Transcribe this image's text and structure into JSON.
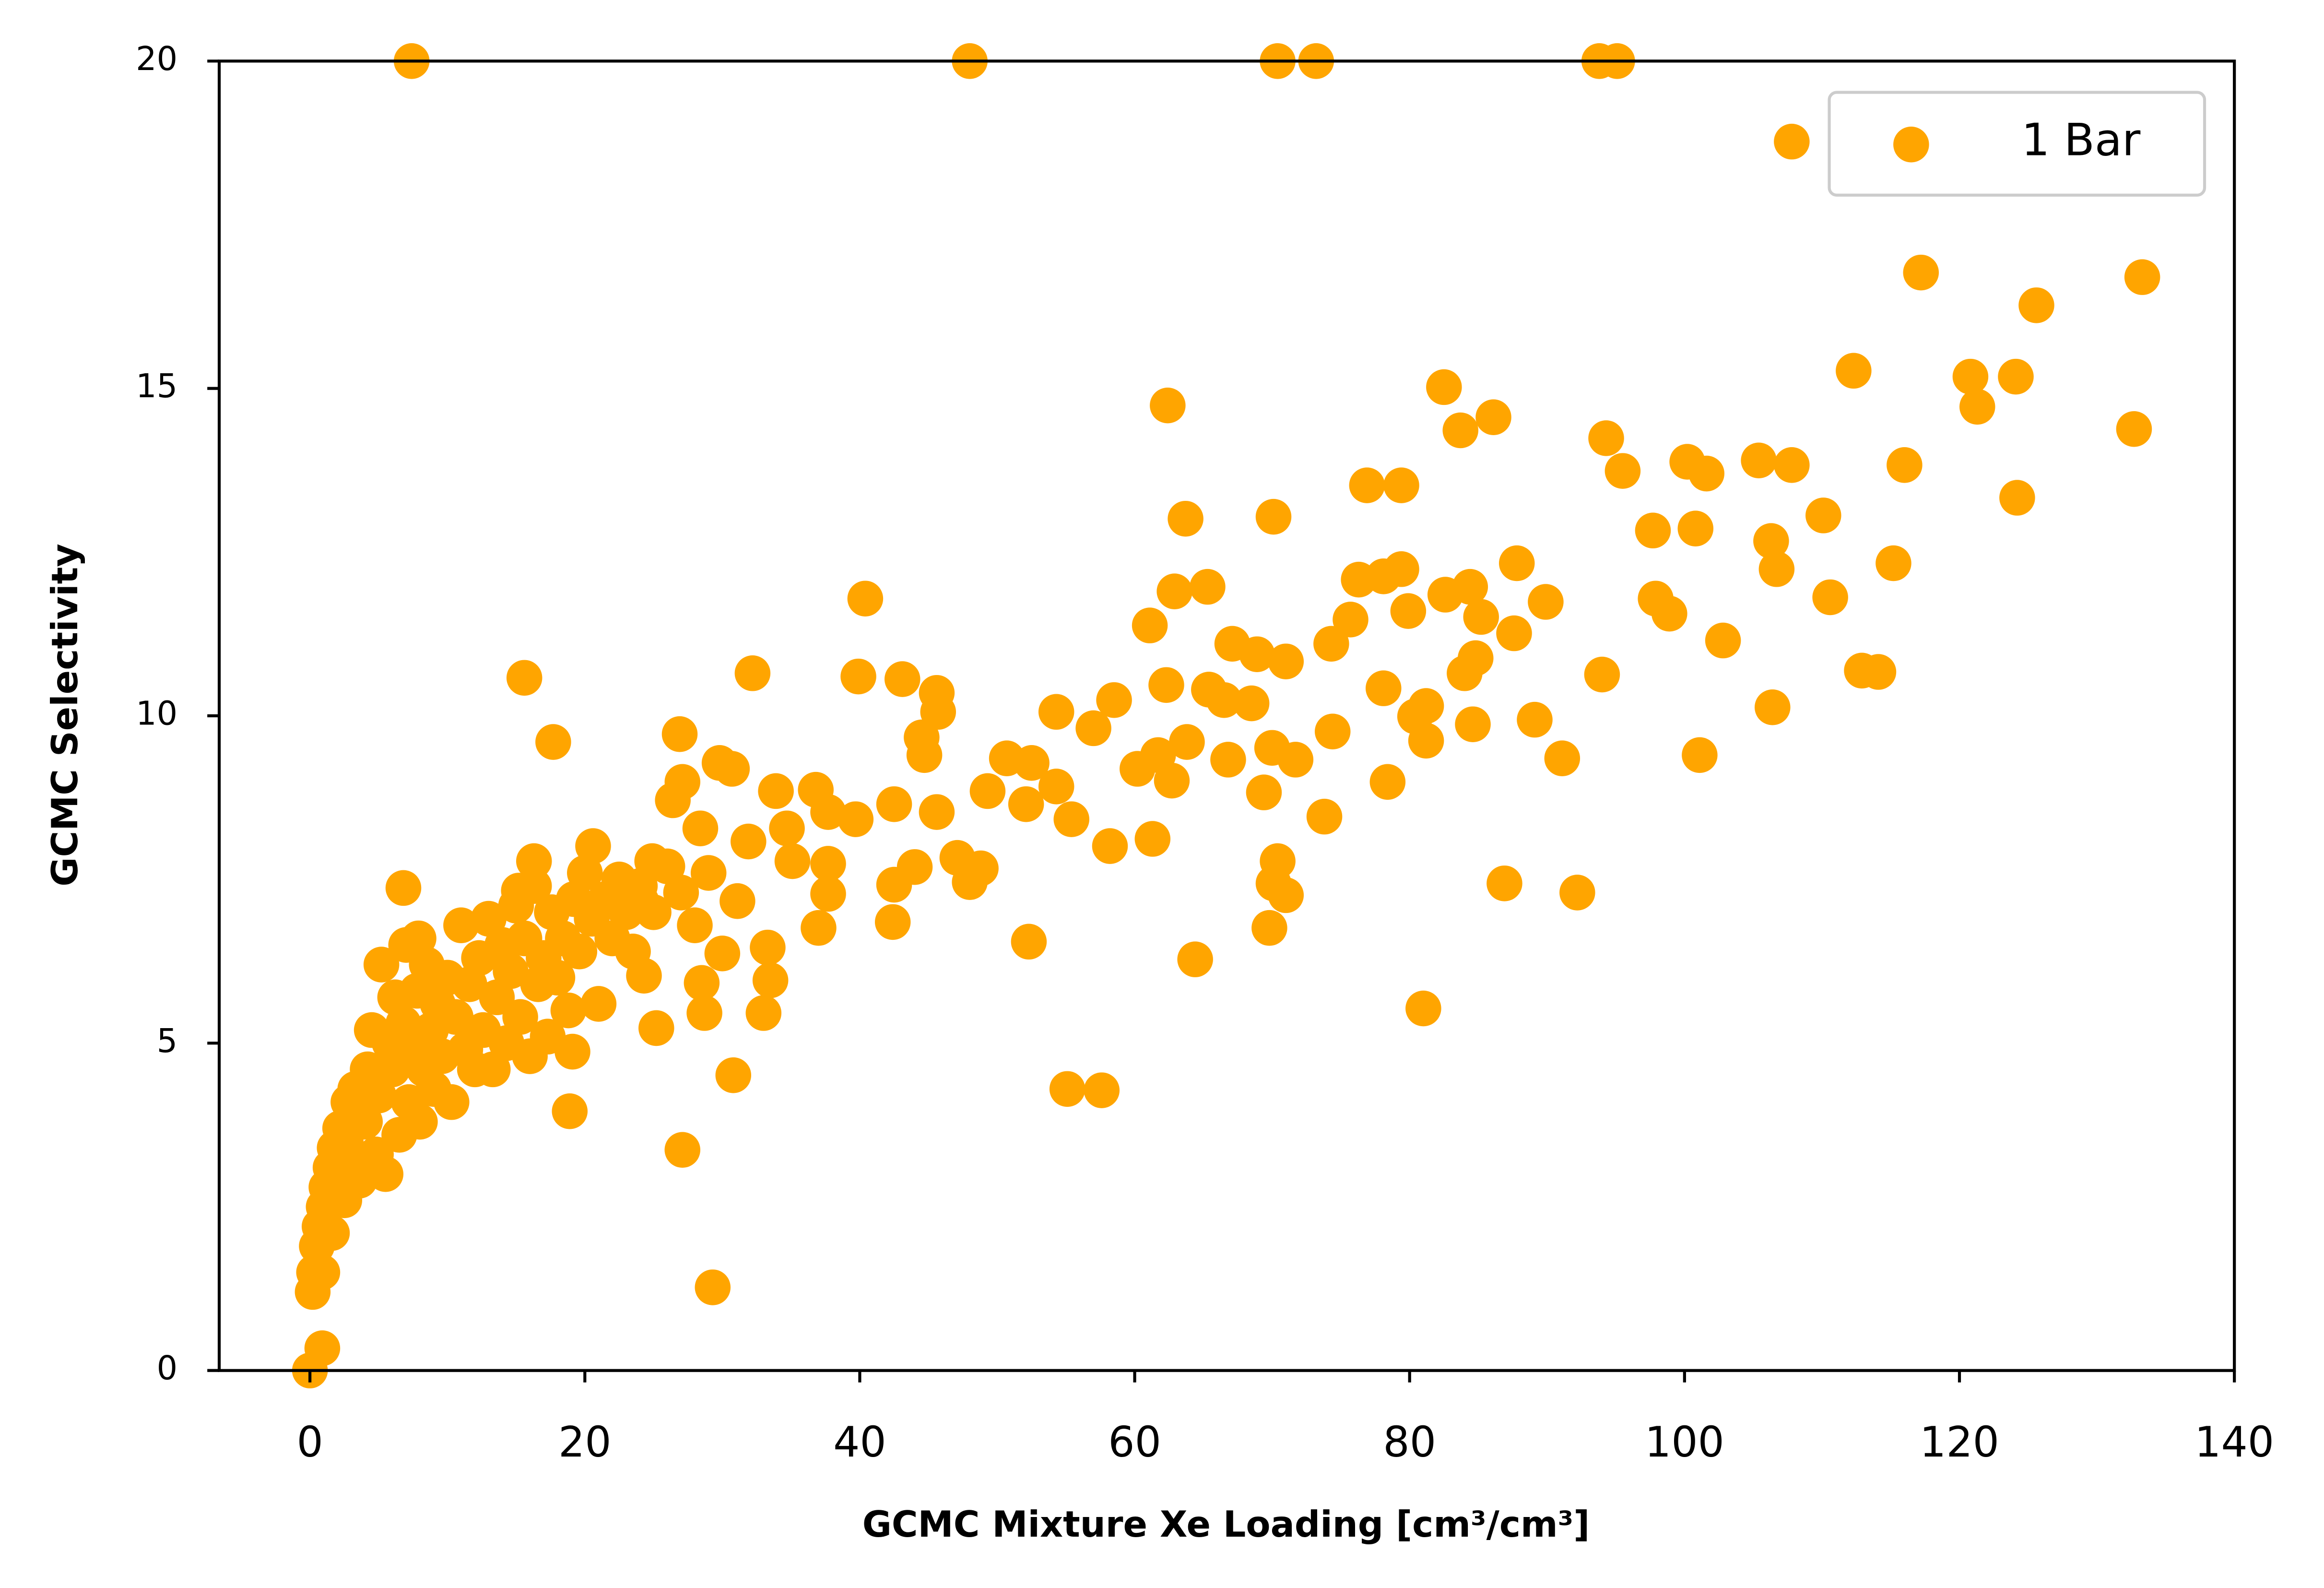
{
  "chart_data": {
    "type": "scatter",
    "xlabel": "GCMC Mixture Xe Loading [cm³/cm³]",
    "ylabel": "GCMC Selectivity",
    "xlim": [
      -6.6,
      140
    ],
    "ylim": [
      0,
      20
    ],
    "xticks": [
      0,
      20,
      40,
      60,
      80,
      100,
      120,
      140
    ],
    "yticks": [
      0,
      5,
      10,
      15,
      20
    ],
    "legend": "upper right",
    "x": [
      7.4,
      48.0,
      70.4,
      73.2,
      93.8,
      95.1,
      107.8,
      117.2,
      133.3,
      125.6,
      112.3,
      120.8,
      124.1,
      121.3,
      132.7,
      124.2,
      116.0,
      82.5,
      62.4,
      86.1,
      83.7,
      94.3,
      95.5,
      105.4,
      107.8,
      100.2,
      101.6,
      76.9,
      79.4,
      63.7,
      70.1,
      100.8,
      97.7,
      110.1,
      106.3,
      106.7,
      115.2,
      87.8,
      84.4,
      82.6,
      79.4,
      76.3,
      78.1,
      65.3,
      62.9,
      40.4,
      89.9,
      97.9,
      98.9,
      110.6,
      79.9,
      75.7,
      85.2,
      61.1,
      87.6,
      102.8,
      67.1,
      74.3,
      68.9,
      71.0,
      84.8,
      84.0,
      112.9,
      114.1,
      94.0,
      15.6,
      32.2,
      39.9,
      43.1,
      45.6,
      45.7,
      62.3,
      65.4,
      66.5,
      68.5,
      78.1,
      58.5,
      54.3,
      106.4,
      81.2,
      80.4,
      84.6,
      89.1,
      81.2,
      74.4,
      57.0,
      17.7,
      26.9,
      44.5,
      44.7,
      70.0,
      101.1,
      91.1,
      71.7,
      63.8,
      61.7,
      60.2,
      66.8,
      50.7,
      52.5,
      29.8,
      30.7,
      27.1,
      62.7,
      78.4,
      69.4,
      33.9,
      36.8,
      54.3,
      49.3,
      26.4,
      42.5,
      45.6,
      52.1,
      55.4,
      73.8,
      39.7,
      37.7,
      28.4,
      31.9,
      34.7,
      61.3,
      58.2,
      20.6,
      16.3,
      47.1,
      70.4,
      44.0,
      48.8,
      35.1,
      37.7,
      24.9,
      48.0,
      70.1,
      86.9,
      92.2,
      71.0,
      42.5,
      6.8,
      37.7,
      31.1,
      24.1,
      15.2,
      42.4,
      37.0,
      69.8,
      52.3,
      33.3,
      64.4,
      30.0,
      33.5,
      24.3,
      28.5,
      81.0,
      33.0,
      28.7,
      25.2,
      19.1,
      30.8,
      55.1,
      57.6,
      18.9,
      27.1,
      29.3,
      0.9,
      0,
      0.2,
      0.3,
      0.5,
      0.7,
      1,
      1.2,
      1.5,
      1.8,
      2,
      2.2,
      2.5,
      2.8,
      3,
      3.3,
      3.6,
      4,
      4.2,
      4.5,
      4.8,
      5,
      5.2,
      5.5,
      5.8,
      6,
      6.2,
      6.5,
      6.8,
      7,
      7.2,
      7.5,
      7.8,
      8,
      8.3,
      8.5,
      8.8,
      9,
      9.3,
      9.6,
      10,
      10.3,
      10.6,
      11,
      11.3,
      11.6,
      12,
      12.3,
      12.6,
      13,
      13.3,
      13.6,
      14,
      14.3,
      14.6,
      15,
      15.3,
      15.6,
      16,
      16.3,
      16.6,
      17,
      17.3,
      17.6,
      18,
      18.4,
      18.8,
      19.2,
      19.6,
      20,
      20.5,
      21,
      21.5,
      22,
      22.5,
      23,
      23.5,
      24,
      25,
      26,
      27,
      28,
      29,
      3.8,
      2.6,
      1.6,
      0.9,
      7.9
    ],
    "series": [
      {
        "name": "1 Bar",
        "color": "#ffa500",
        "values": [
          20,
          20,
          20,
          20,
          20,
          20,
          18.77,
          16.77,
          16.7,
          16.27,
          15.27,
          15.18,
          15.18,
          14.72,
          14.38,
          13.33,
          13.83,
          15.02,
          14.74,
          14.56,
          14.36,
          14.24,
          13.74,
          13.9,
          13.83,
          13.88,
          13.7,
          13.52,
          13.52,
          13.01,
          13.04,
          12.86,
          12.83,
          13.06,
          12.67,
          12.24,
          12.33,
          12.33,
          11.97,
          11.85,
          12.24,
          12.08,
          12.13,
          11.97,
          11.9,
          11.79,
          11.74,
          11.79,
          11.56,
          11.81,
          11.6,
          11.47,
          11.51,
          11.38,
          11.26,
          11.15,
          11.1,
          11.1,
          10.94,
          10.83,
          10.88,
          10.65,
          10.69,
          10.67,
          10.63,
          10.58,
          10.65,
          10.6,
          10.56,
          10.35,
          10.06,
          10.47,
          10.4,
          10.24,
          10.19,
          10.42,
          10.24,
          10.06,
          10.13,
          10.15,
          9.99,
          9.87,
          9.94,
          9.62,
          9.76,
          9.81,
          9.6,
          9.72,
          9.67,
          9.4,
          9.51,
          9.4,
          9.35,
          9.33,
          9.6,
          9.4,
          9.19,
          9.33,
          9.35,
          9.28,
          9.28,
          9.19,
          8.99,
          9.01,
          8.99,
          8.83,
          8.85,
          8.87,
          8.92,
          8.85,
          8.71,
          8.65,
          8.53,
          8.65,
          8.42,
          8.46,
          8.42,
          8.53,
          8.28,
          8.08,
          8.28,
          8.12,
          8.01,
          8.01,
          7.78,
          7.83,
          7.78,
          7.69,
          7.67,
          7.78,
          7.74,
          7.78,
          7.46,
          7.44,
          7.44,
          7.3,
          7.26,
          7.42,
          7.37,
          7.28,
          7.17,
          7.17,
          7.33,
          6.85,
          6.76,
          6.76,
          6.55,
          6.46,
          6.28,
          6.37,
          5.96,
          6.03,
          5.92,
          5.53,
          5.46,
          5.46,
          5.23,
          4.87,
          4.51,
          4.3,
          4.28,
          3.96,
          3.37,
          1.27,
          0.34,
          0,
          1.2,
          1.5,
          1.9,
          2.2,
          2.5,
          2.8,
          3.1,
          3.4,
          3.0,
          3.7,
          2.6,
          4.1,
          3.3,
          4.3,
          2.9,
          3.8,
          4.6,
          5.2,
          3.3,
          4.2,
          6.2,
          3.0,
          5.0,
          4.6,
          5.7,
          3.6,
          5.3,
          6.5,
          4.1,
          4.9,
          5.8,
          3.8,
          4.6,
          6.2,
          5.2,
          4.3,
          5.6,
          4.8,
          6.0,
          4.1,
          5.4,
          6.8,
          4.9,
          5.9,
          4.6,
          6.3,
          5.2,
          6.9,
          4.6,
          5.7,
          6.5,
          5.0,
          6.1,
          7.1,
          5.4,
          6.6,
          4.8,
          7.4,
          5.9,
          6.3,
          5.1,
          7.0,
          6.0,
          6.6,
          5.5,
          7.2,
          6.4,
          7.6,
          6.9,
          5.6,
          7.2,
          6.6,
          7.5,
          7.0,
          6.4,
          7.4,
          7.0,
          7.7,
          7.3,
          6.8,
          7.6,
          4.0,
          3.5,
          2.1,
          1.5,
          6.6
        ]
      }
    ]
  }
}
